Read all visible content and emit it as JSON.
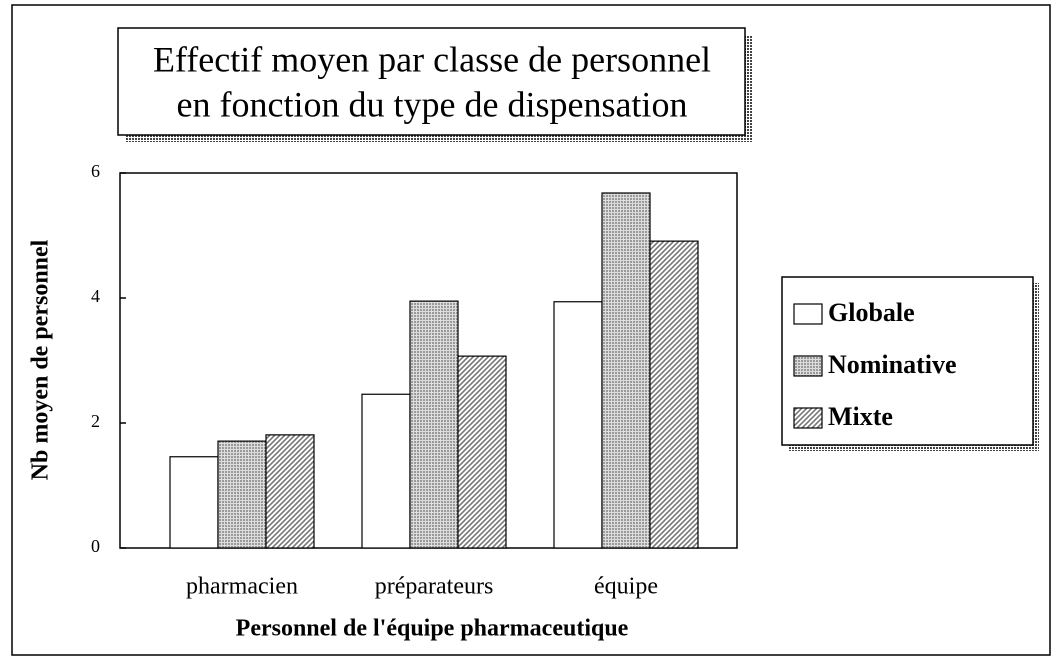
{
  "chart_data": {
    "type": "bar",
    "title": [
      "Effectif moyen par classe de personnel",
      "en fonction du type de dispensation"
    ],
    "x_label": "Personnel de l'équipe pharmaceutique",
    "y_label": "Nb moyen de personnel",
    "categories": [
      "pharmacien",
      "préparateurs",
      "équipe"
    ],
    "series": [
      {
        "name": "Globale",
        "color": "#ffffff",
        "pattern": "none",
        "values": [
          1.46,
          2.46,
          3.94
        ]
      },
      {
        "name": "Nominative",
        "color": "#9a9a9a",
        "pattern": "dots",
        "values": [
          1.71,
          3.95,
          5.68
        ]
      },
      {
        "name": "Mixte",
        "color": "#777777",
        "pattern": "hatch",
        "values": [
          1.81,
          3.07,
          4.91
        ]
      }
    ],
    "ylim": [
      0,
      6
    ],
    "yticks": [
      0,
      2,
      4,
      6
    ],
    "grid": false,
    "legend": "right"
  }
}
